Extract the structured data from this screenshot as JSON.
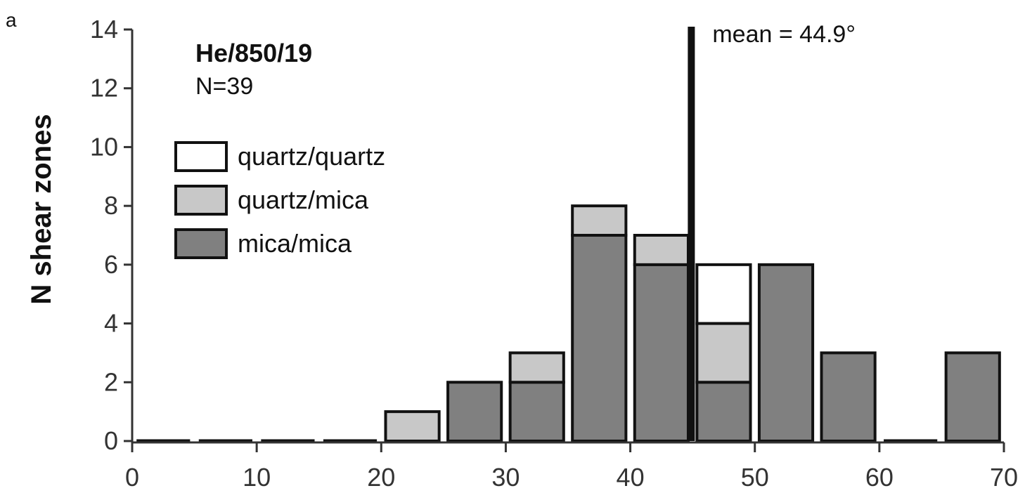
{
  "panel_label": "a",
  "chart_data": {
    "type": "bar",
    "stacked": true,
    "xlabel": "",
    "ylabel": "N shear zones",
    "xlim": [
      0,
      70
    ],
    "ylim": [
      0,
      14
    ],
    "x_ticks": [
      "0",
      "10",
      "20",
      "30",
      "40",
      "50",
      "60",
      "70"
    ],
    "y_ticks": [
      "0",
      "2",
      "4",
      "6",
      "8",
      "10",
      "12",
      "14"
    ],
    "bin_width": 5,
    "bins": [
      0,
      5,
      10,
      15,
      20,
      25,
      30,
      35,
      40,
      45,
      50,
      55,
      60,
      65
    ],
    "series": [
      {
        "name": "mica/mica",
        "color": "#808080",
        "values": [
          0,
          0,
          0,
          0,
          0,
          2,
          2,
          7,
          6,
          2,
          6,
          3,
          0,
          3
        ]
      },
      {
        "name": "quartz/mica",
        "color": "#c8c8c8",
        "values": [
          0,
          0,
          0,
          0,
          1,
          0,
          1,
          1,
          1,
          2,
          0,
          0,
          0,
          0
        ]
      },
      {
        "name": "quartz/quartz",
        "color": "#ffffff",
        "values": [
          0,
          0,
          0,
          0,
          0,
          0,
          0,
          0,
          0,
          2,
          0,
          0,
          0,
          0
        ]
      }
    ],
    "sample_title": "He/850/19",
    "sample_n": "N=39",
    "mean_value": 44.9,
    "mean_label": "mean = 44.9°",
    "legend_order": [
      "quartz/quartz",
      "quartz/mica",
      "mica/mica"
    ],
    "legend_position": "top-left"
  }
}
